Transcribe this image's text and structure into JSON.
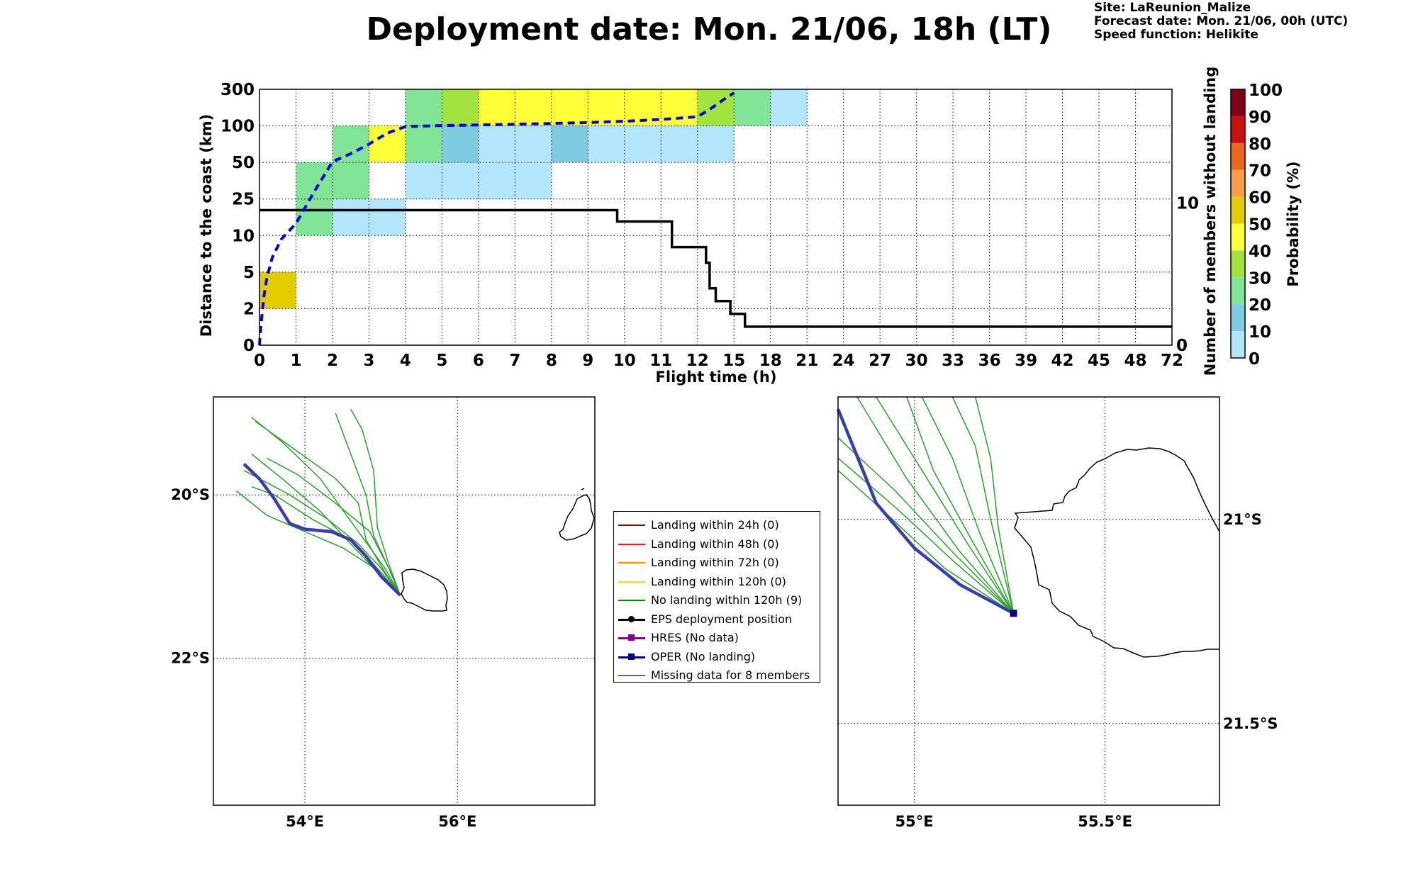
{
  "title": "Deployment date: Mon. 21/06, 18h (LT)",
  "info": {
    "site": "Site: LaReunion_Malize",
    "forecast": "Forecast date: Mon. 21/06, 00h (UTC)",
    "speed": "Speed function: Helikite"
  },
  "colors": {
    "bins": [
      "#b3e6fa",
      "#7fcbe2",
      "#82e496",
      "#a2e340",
      "#ffff3a",
      "#e3cc00",
      "#fa9c48",
      "#e8681c",
      "#c8100e",
      "#7f0018"
    ],
    "mean_line": "#0000dd",
    "members_line": "#000000",
    "traj_green": "#2e9e2e",
    "oper_line": "#3a3fa6"
  },
  "chart_data": [
    {
      "type": "heatmap",
      "xlabel": "Flight time (h)",
      "ylabel": "Distance to the coast (km)",
      "y2label": "Number of members without landing",
      "x_ticks": [
        "0",
        "1",
        "2",
        "3",
        "4",
        "5",
        "6",
        "7",
        "8",
        "9",
        "10",
        "11",
        "12",
        "15",
        "18",
        "21",
        "24",
        "27",
        "30",
        "33",
        "36",
        "39",
        "42",
        "45",
        "48",
        "72"
      ],
      "y_ticks": [
        "0",
        "2",
        "5",
        "10",
        "25",
        "50",
        "100",
        "300"
      ],
      "y2_ticks": [
        "0",
        "10"
      ],
      "y2_range": [
        0,
        18
      ],
      "grid": true,
      "cells": [
        {
          "x0": 0,
          "x1": 1,
          "y0": 2,
          "y1": 5,
          "bin": 5
        },
        {
          "x0": 1,
          "x1": 2,
          "y0": 10,
          "y1": 25,
          "bin": 2
        },
        {
          "x0": 1,
          "x1": 2,
          "y0": 25,
          "y1": 50,
          "bin": 2
        },
        {
          "x0": 2,
          "x1": 3,
          "y0": 10,
          "y1": 25,
          "bin": 0
        },
        {
          "x0": 2,
          "x1": 3,
          "y0": 25,
          "y1": 50,
          "bin": 2
        },
        {
          "x0": 2,
          "x1": 3,
          "y0": 50,
          "y1": 100,
          "bin": 2
        },
        {
          "x0": 3,
          "x1": 4,
          "y0": 10,
          "y1": 25,
          "bin": 0
        },
        {
          "x0": 3,
          "x1": 4,
          "y0": 50,
          "y1": 100,
          "bin": 4
        },
        {
          "x0": 4,
          "x1": 5,
          "y0": 25,
          "y1": 50,
          "bin": 0
        },
        {
          "x0": 4,
          "x1": 5,
          "y0": 50,
          "y1": 100,
          "bin": 2
        },
        {
          "x0": 4,
          "x1": 5,
          "y0": 100,
          "y1": 300,
          "bin": 2
        },
        {
          "x0": 5,
          "x1": 6,
          "y0": 25,
          "y1": 50,
          "bin": 0
        },
        {
          "x0": 5,
          "x1": 6,
          "y0": 50,
          "y1": 100,
          "bin": 1
        },
        {
          "x0": 5,
          "x1": 6,
          "y0": 100,
          "y1": 300,
          "bin": 3
        },
        {
          "x0": 6,
          "x1": 8,
          "y0": 25,
          "y1": 50,
          "bin": 0
        },
        {
          "x0": 6,
          "x1": 8,
          "y0": 50,
          "y1": 100,
          "bin": 0
        },
        {
          "x0": 6,
          "x1": 12,
          "y0": 100,
          "y1": 300,
          "bin": 4
        },
        {
          "x0": 8,
          "x1": 9,
          "y0": 50,
          "y1": 100,
          "bin": 1
        },
        {
          "x0": 9,
          "x1": 15,
          "y0": 50,
          "y1": 100,
          "bin": 0
        },
        {
          "x0": 12,
          "x1": 15,
          "y0": 100,
          "y1": 300,
          "bin": 3
        },
        {
          "x0": 15,
          "x1": 18,
          "y0": 100,
          "y1": 300,
          "bin": 2
        },
        {
          "x0": 18,
          "x1": 21,
          "y0": 100,
          "y1": 300,
          "bin": 0
        }
      ],
      "mean_distance_curve": {
        "x": [
          0,
          0.02,
          0.06,
          0.12,
          0.2,
          0.35,
          0.6,
          1.0,
          1.5,
          2.0,
          2.5,
          3.0,
          3.5,
          4.0,
          5.0,
          6.0,
          7.0,
          8.0,
          9.0,
          10.0,
          11.0,
          12.0,
          13.0,
          14.5,
          15.0
        ],
        "y": [
          0,
          0.6,
          1.5,
          3.0,
          4.5,
          7.0,
          9.5,
          15.0,
          30.0,
          51.0,
          62.0,
          75.0,
          90.0,
          99.0,
          102.0,
          105.0,
          109.0,
          113.0,
          118.0,
          125.0,
          135.0,
          150.0,
          190.0,
          260.0,
          280.0
        ]
      },
      "members_without_landing": {
        "x": [
          0,
          9.8,
          9.8,
          11.3,
          11.3,
          12.7,
          12.7,
          13.0,
          13.0,
          13.5,
          13.5,
          14.7,
          14.7,
          15.0,
          15.0,
          15.9,
          15.9,
          17.0,
          17.0,
          20.9,
          20.9,
          72
        ],
        "y": [
          9.5,
          9.5,
          8.7,
          8.7,
          6.9,
          6.9,
          5.8,
          5.8,
          4.0,
          4.0,
          3.1,
          3.1,
          2.2,
          2.2,
          2.2,
          2.2,
          1.3,
          1.3,
          1.3,
          1.3,
          1.3,
          1.3
        ]
      }
    },
    {
      "type": "colorbar",
      "label": "Probability (%)",
      "ticks": [
        "0",
        "10",
        "20",
        "30",
        "40",
        "50",
        "60",
        "70",
        "80",
        "90",
        "100"
      ]
    },
    {
      "type": "map",
      "name": "regional",
      "lon_range": [
        52.8,
        57.8
      ],
      "lat_range": [
        -23.8,
        -18.8
      ],
      "x_ticks": [
        "54°E",
        "56°E"
      ],
      "y_ticks": [
        "20°S",
        "22°S"
      ],
      "grid": true,
      "members": [
        [
          [
            55.25,
            -21.23
          ],
          [
            55.0,
            -21.0
          ],
          [
            54.6,
            -20.6
          ],
          [
            54.2,
            -20.2
          ],
          [
            53.7,
            -19.8
          ],
          [
            53.3,
            -19.5
          ]
        ],
        [
          [
            55.25,
            -21.23
          ],
          [
            55.05,
            -20.95
          ],
          [
            54.8,
            -20.55
          ],
          [
            54.7,
            -20.1
          ],
          [
            54.4,
            -19.8
          ],
          [
            53.8,
            -19.4
          ],
          [
            53.35,
            -19.1
          ]
        ],
        [
          [
            55.25,
            -21.23
          ],
          [
            55.1,
            -20.9
          ],
          [
            54.9,
            -20.5
          ],
          [
            54.8,
            -20.0
          ],
          [
            54.6,
            -19.5
          ],
          [
            54.4,
            -19.0
          ]
        ],
        [
          [
            55.25,
            -21.23
          ],
          [
            55.1,
            -20.85
          ],
          [
            54.95,
            -20.4
          ],
          [
            54.9,
            -19.7
          ],
          [
            54.75,
            -19.2
          ],
          [
            54.6,
            -18.95
          ]
        ],
        [
          [
            55.25,
            -21.23
          ],
          [
            55.0,
            -20.95
          ],
          [
            54.6,
            -20.55
          ],
          [
            54.1,
            -20.3
          ],
          [
            53.6,
            -20.0
          ],
          [
            53.3,
            -19.9
          ]
        ],
        [
          [
            55.25,
            -21.23
          ],
          [
            55.1,
            -20.9
          ],
          [
            54.85,
            -20.45
          ],
          [
            54.4,
            -20.1
          ],
          [
            53.9,
            -19.75
          ],
          [
            53.5,
            -19.55
          ]
        ],
        [
          [
            55.25,
            -21.23
          ],
          [
            55.0,
            -20.9
          ],
          [
            54.7,
            -20.6
          ],
          [
            54.3,
            -20.3
          ],
          [
            53.8,
            -20.0
          ],
          [
            53.2,
            -19.7
          ]
        ],
        [
          [
            55.25,
            -21.23
          ],
          [
            55.0,
            -20.95
          ],
          [
            54.5,
            -20.65
          ],
          [
            54.0,
            -20.45
          ],
          [
            53.5,
            -20.25
          ],
          [
            53.1,
            -19.95
          ]
        ],
        [
          [
            55.25,
            -21.23
          ],
          [
            55.05,
            -20.9
          ],
          [
            54.7,
            -20.45
          ],
          [
            54.2,
            -19.8
          ],
          [
            53.7,
            -19.35
          ],
          [
            53.3,
            -19.05
          ]
        ]
      ],
      "oper": [
        [
          55.25,
          -21.23
        ],
        [
          55.0,
          -21.0
        ],
        [
          54.8,
          -20.75
        ],
        [
          54.6,
          -20.55
        ],
        [
          54.35,
          -20.45
        ],
        [
          54.0,
          -20.42
        ],
        [
          53.8,
          -20.35
        ],
        [
          53.6,
          -20.05
        ],
        [
          53.4,
          -19.8
        ],
        [
          53.2,
          -19.62
        ]
      ]
    },
    {
      "type": "map",
      "name": "zoom",
      "lon_range": [
        54.8,
        55.8
      ],
      "lat_range": [
        -21.7,
        -20.7
      ],
      "x_ticks": [
        "55°E",
        "55.5°E"
      ],
      "y_ticks": [
        "21°S",
        "21.5°S"
      ],
      "grid": true,
      "members": [
        [
          [
            55.26,
            -21.23
          ],
          [
            55.1,
            -21.08
          ],
          [
            54.95,
            -20.93
          ],
          [
            54.8,
            -20.8
          ]
        ],
        [
          [
            55.26,
            -21.23
          ],
          [
            55.14,
            -21.06
          ],
          [
            55.02,
            -20.88
          ],
          [
            54.9,
            -20.7
          ]
        ],
        [
          [
            55.26,
            -21.23
          ],
          [
            55.17,
            -21.03
          ],
          [
            55.1,
            -20.85
          ],
          [
            55.02,
            -20.7
          ]
        ],
        [
          [
            55.26,
            -21.23
          ],
          [
            55.2,
            -21.0
          ],
          [
            55.16,
            -20.82
          ],
          [
            55.1,
            -20.7
          ]
        ],
        [
          [
            55.26,
            -21.23
          ],
          [
            55.22,
            -21.02
          ],
          [
            55.2,
            -20.85
          ],
          [
            55.16,
            -20.7
          ]
        ],
        [
          [
            55.26,
            -21.23
          ],
          [
            55.08,
            -21.12
          ],
          [
            54.92,
            -20.98
          ],
          [
            54.8,
            -20.88
          ]
        ],
        [
          [
            55.26,
            -21.23
          ],
          [
            55.12,
            -21.08
          ],
          [
            54.98,
            -20.9
          ],
          [
            54.85,
            -20.7
          ]
        ],
        [
          [
            55.26,
            -21.23
          ],
          [
            55.1,
            -21.1
          ],
          [
            54.95,
            -20.97
          ],
          [
            54.8,
            -20.85
          ]
        ],
        [
          [
            55.26,
            -21.23
          ],
          [
            55.15,
            -21.05
          ],
          [
            55.05,
            -20.88
          ],
          [
            54.98,
            -20.7
          ]
        ]
      ],
      "oper": [
        [
          55.26,
          -21.23
        ],
        [
          55.12,
          -21.16
        ],
        [
          55.0,
          -21.07
        ],
        [
          54.9,
          -20.96
        ],
        [
          54.8,
          -20.73
        ]
      ]
    }
  ],
  "legend": [
    {
      "label": "Landing within 24h (0)",
      "color": "#8b0000",
      "marker": "none"
    },
    {
      "label": "Landing within 48h (0)",
      "color": "#ee1c1c",
      "marker": "none"
    },
    {
      "label": "Landing within 72h (0)",
      "color": "#ff8c00",
      "marker": "none"
    },
    {
      "label": "Landing within 120h (0)",
      "color": "#ffd700",
      "marker": "none"
    },
    {
      "label": "No landing within 120h (9)",
      "color": "#108010",
      "marker": "none"
    },
    {
      "label": "EPS deployment position",
      "color": "#000000",
      "marker": "circle"
    },
    {
      "label": "HRES (No data)",
      "color": "#800080",
      "marker": "square"
    },
    {
      "label": "OPER (No landing)",
      "color": "#000080",
      "marker": "square"
    },
    {
      "label": "Missing data for 8 members",
      "color": "#5555ff",
      "marker": "none"
    }
  ]
}
